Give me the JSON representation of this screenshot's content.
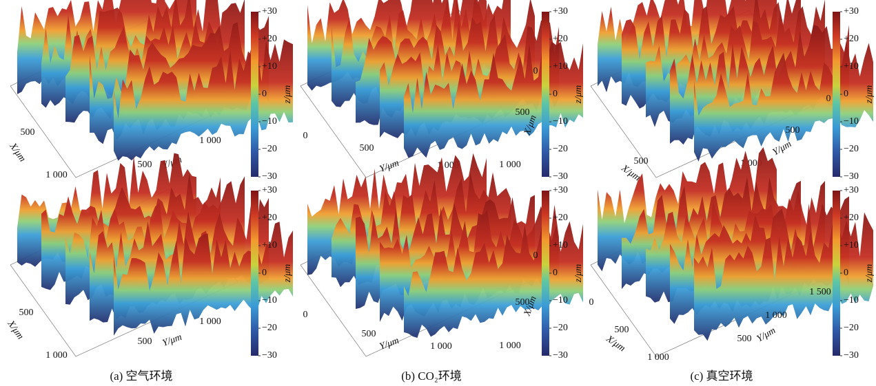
{
  "columns": [
    {
      "caption": "(a) 空气环境",
      "plots": [
        {
          "axis_labels": [
            "500",
            "X/μm",
            "1 000",
            "500",
            "Y/μm",
            "1 000"
          ],
          "colorbar_ticks": [
            "+30",
            "+20",
            "+10",
            "0",
            "−10",
            "−20",
            "−30"
          ],
          "colorbar_label": "z/μm"
        },
        {
          "axis_labels": [
            "500",
            "X/μm",
            "1 000",
            "500",
            "Y/μm",
            "1 000"
          ],
          "colorbar_ticks": [
            "+30",
            "+20",
            "+10",
            "0",
            "−10",
            "−20",
            "−30"
          ],
          "colorbar_label": "z/μm"
        }
      ]
    },
    {
      "caption": "(b) CO₂环境",
      "plots": [
        {
          "axis_labels": [
            "0",
            "500",
            "Y/μm",
            "1 000",
            "1 000",
            "X/μm",
            "500",
            "0"
          ],
          "colorbar_ticks": [
            "+30",
            "+20",
            "+10",
            "0",
            "−10",
            "−20",
            "−30"
          ],
          "colorbar_label": "z/μm"
        },
        {
          "axis_labels": [
            "0",
            "500",
            "Y/μm",
            "1 000",
            "1 000",
            "X/μm",
            "500",
            "0"
          ],
          "colorbar_ticks": [
            "+30",
            "+20",
            "+10",
            "0",
            "−10",
            "−20",
            "−30"
          ],
          "colorbar_label": "z/μm"
        }
      ]
    },
    {
      "caption": "(c) 真空环境",
      "plots": [
        {
          "axis_labels": [
            "0",
            "500",
            "Y/μm",
            "1 000",
            "500",
            "X/μm"
          ],
          "colorbar_ticks": [
            "+30",
            "+20",
            "+10",
            "0",
            "−10",
            "−20",
            "−30"
          ],
          "colorbar_label": "z/μm"
        },
        {
          "axis_labels": [
            "0",
            "500",
            "X/μm",
            "1 000",
            "500",
            "Y/μm",
            "1 000",
            "1 500"
          ],
          "colorbar_ticks": [
            "+30",
            "+20",
            "+10",
            "0",
            "−10",
            "−20",
            "−30"
          ],
          "colorbar_label": "z/μm"
        }
      ]
    }
  ]
}
